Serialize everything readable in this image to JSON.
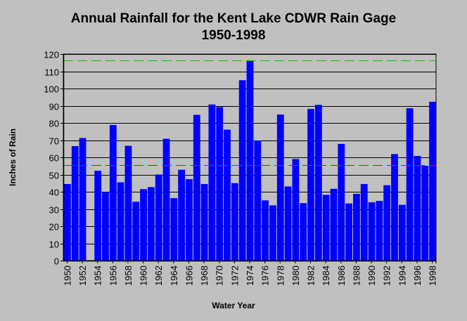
{
  "chart_data": {
    "type": "bar",
    "title": "Annual Rainfall for the Kent Lake CDWR Rain Gage",
    "subtitle": "1950-1998",
    "xlabel": "Water Year",
    "ylabel": "Inches of Rain",
    "ylim": [
      0,
      120
    ],
    "yticks": [
      0,
      10,
      20,
      30,
      40,
      50,
      60,
      70,
      80,
      90,
      100,
      110,
      120
    ],
    "xticks": [
      "1950",
      "1952",
      "1954",
      "1956",
      "1958",
      "1960",
      "1962",
      "1964",
      "1966",
      "1968",
      "1970",
      "1972",
      "1974",
      "1976",
      "1978",
      "1980",
      "1982",
      "1984",
      "1986",
      "1988",
      "1990",
      "1992",
      "1994",
      "1996",
      "1998"
    ],
    "grid": true,
    "bar_color": "#0000ff",
    "categories": [
      1950,
      1951,
      1952,
      1953,
      1954,
      1955,
      1956,
      1957,
      1958,
      1959,
      1960,
      1961,
      1962,
      1963,
      1964,
      1965,
      1966,
      1967,
      1968,
      1969,
      1970,
      1971,
      1972,
      1973,
      1974,
      1975,
      1976,
      1977,
      1978,
      1979,
      1980,
      1981,
      1982,
      1983,
      1984,
      1985,
      1986,
      1987,
      1988,
      1989,
      1990,
      1991,
      1992,
      1993,
      1994,
      1995,
      1996,
      1997,
      1998
    ],
    "values": [
      44.5,
      66.5,
      71.2,
      null,
      52.2,
      39.8,
      78.8,
      45.5,
      66.7,
      34.2,
      41.5,
      42.7,
      50,
      70.8,
      36.3,
      52.8,
      47.3,
      84.7,
      44.5,
      90.7,
      89.2,
      76.1,
      45,
      104.8,
      116.4,
      69.7,
      35,
      32.1,
      84.9,
      43.1,
      59,
      33.4,
      88.1,
      90.5,
      38.2,
      41.7,
      67.8,
      33.2,
      38.8,
      44.5,
      33.9,
      34.7,
      43.8,
      61.9,
      32.4,
      88.5,
      60.8,
      55.1,
      92.3
    ],
    "reference_lines": [
      {
        "value": 116.4,
        "color": "#00cc00"
      },
      {
        "value": 55.5,
        "color": "#ff0000"
      }
    ]
  }
}
